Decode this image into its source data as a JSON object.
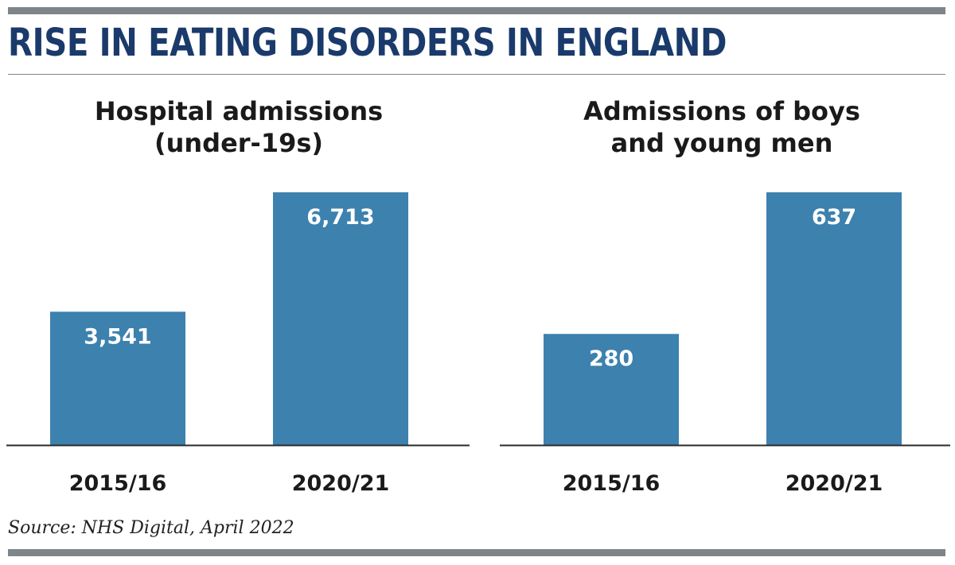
{
  "headline": "RISE IN EATING DISORDERS IN ENGLAND",
  "source": "Source: NHS Digital, April 2022",
  "colors": {
    "bar": "#3d81ae",
    "headline": "#1a3a6b",
    "rule": "#7d8589",
    "value_label": "#ffffff"
  },
  "chart_data": [
    {
      "type": "bar",
      "title": "Hospital admissions\n(under-19s)",
      "categories": [
        "2015/16",
        "2020/21"
      ],
      "values": [
        3541,
        6713
      ],
      "value_labels": [
        "3,541",
        "6,713"
      ],
      "ylim": [
        0,
        6713
      ],
      "xlabel": "",
      "ylabel": "",
      "grid": false,
      "legend": "none"
    },
    {
      "type": "bar",
      "title": "Admissions of boys\nand young men",
      "categories": [
        "2015/16",
        "2020/21"
      ],
      "values": [
        280,
        637
      ],
      "value_labels": [
        "280",
        "637"
      ],
      "ylim": [
        0,
        637
      ],
      "xlabel": "",
      "ylabel": "",
      "grid": false,
      "legend": "none"
    }
  ]
}
